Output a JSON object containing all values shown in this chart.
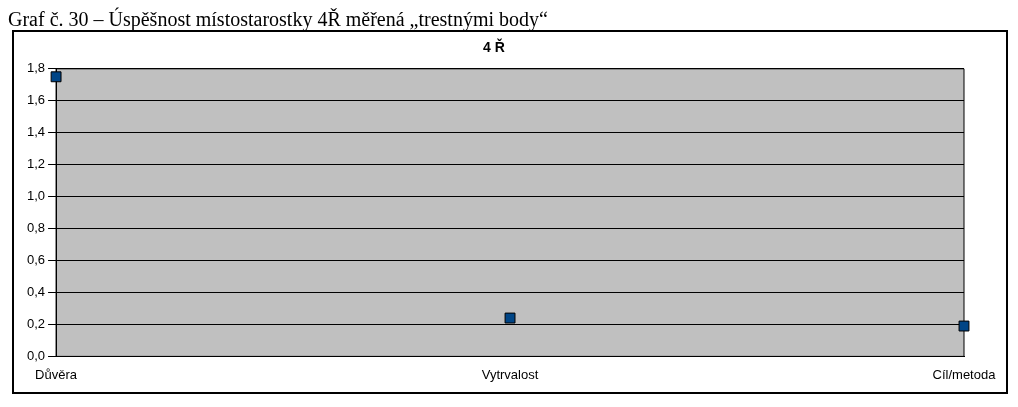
{
  "chart_data": {
    "type": "scatter",
    "title": "4 Ř",
    "annotations": [
      "Graf č. 30 – Úspěšnost místostarostky 4Ř měřená „trestnými body“"
    ],
    "categories": [
      "Důvěra",
      "Vytrvalost",
      "Cíl/metoda"
    ],
    "series": [
      {
        "color": "#004586",
        "values": [
          1.75,
          0.24,
          0.19
        ]
      }
    ],
    "ylim": [
      0,
      1.8
    ],
    "yticks": [
      {
        "value": 0,
        "label": "0,0"
      },
      {
        "value": 0.2,
        "label": "0,2"
      },
      {
        "value": 0.4,
        "label": "0,4"
      },
      {
        "value": 0.6,
        "label": "0,6"
      },
      {
        "value": 0.8,
        "label": "0,8"
      },
      {
        "value": 1,
        "label": "1,0"
      },
      {
        "value": 1.2,
        "label": "1,2"
      },
      {
        "value": 1.4,
        "label": "1,4"
      },
      {
        "value": 1.6,
        "label": "1,6"
      },
      {
        "value": 1.8,
        "label": "1,8"
      }
    ],
    "grid": "y",
    "marker": "square",
    "legend": false
  }
}
